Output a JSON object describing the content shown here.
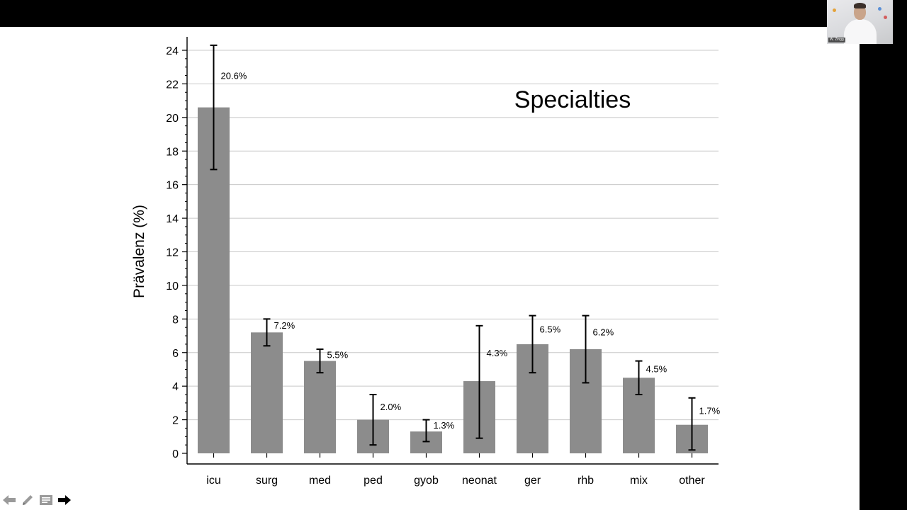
{
  "webcam": {
    "name": "W. Zingg"
  },
  "nav": {
    "icons": [
      "back-arrow-icon",
      "pen-icon",
      "slides-menu-icon",
      "forward-arrow-icon"
    ]
  },
  "colors": {
    "bar": "#8c8c8c",
    "error_bar": "#000000",
    "grid": "#c8c8c8"
  },
  "chart_data": {
    "type": "bar",
    "title": "Specialties",
    "ylabel": "Prävalenz (%)",
    "xlabel": "",
    "ylim": [
      0,
      24
    ],
    "yticks": [
      0,
      2,
      4,
      6,
      8,
      10,
      12,
      14,
      16,
      18,
      20,
      22,
      24
    ],
    "grid": true,
    "categories": [
      "icu",
      "surg",
      "med",
      "ped",
      "gyob",
      "neonat",
      "ger",
      "rhb",
      "mix",
      "other"
    ],
    "values": [
      20.6,
      7.2,
      5.5,
      2.0,
      1.3,
      4.3,
      6.5,
      6.2,
      4.5,
      1.7
    ],
    "value_labels": [
      "20.6%",
      "7.2%",
      "5.5%",
      "2.0%",
      "1.3%",
      "4.3%",
      "6.5%",
      "6.2%",
      "4.5%",
      "1.7%"
    ],
    "ci_lower": [
      16.9,
      6.4,
      4.8,
      0.5,
      0.7,
      0.9,
      4.8,
      4.2,
      3.5,
      0.2
    ],
    "ci_upper": [
      24.3,
      8.0,
      6.2,
      3.5,
      2.0,
      7.6,
      8.2,
      8.2,
      5.5,
      3.3
    ]
  }
}
